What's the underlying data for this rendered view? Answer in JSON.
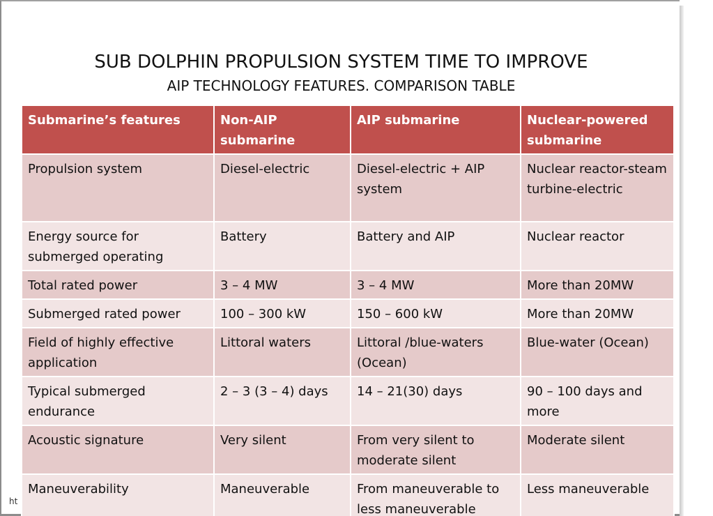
{
  "slide": {
    "title": "SUB DOLPHIN PROPULSION SYSTEM TIME TO IMPROVE",
    "subtitle": "AIP TECHNOLOGY FEATURES. COMPARISON TABLE",
    "footnote": "ht"
  },
  "table": {
    "headers": [
      "Submarine’s features",
      "Non-AIP submarine",
      "AIP submarine",
      "Nuclear-powered submarine"
    ],
    "rows": [
      [
        "Propulsion system",
        "Diesel-electric",
        "Diesel-electric + AIP system",
        "Nuclear reactor-steam turbine-electric"
      ],
      [
        "Energy source for submerged operating",
        "Battery",
        "Battery and AIP",
        "Nuclear reactor"
      ],
      [
        "Total rated power",
        "3 – 4 MW",
        "3 – 4 MW",
        "More than 20MW"
      ],
      [
        "Submerged rated power",
        "100 – 300 kW",
        "150 – 600 kW",
        "More than 20MW"
      ],
      [
        "Field of highly effective application",
        "Littoral waters",
        "Littoral /blue-waters (Ocean)",
        "Blue-water (Ocean)"
      ],
      [
        "Typical submerged endurance",
        "2 – 3 (3 – 4) days",
        "14 – 21(30) days",
        "90 – 100 days and more"
      ],
      [
        "Acoustic signature",
        "Very silent",
        "From very silent to moderate silent",
        "Moderate silent"
      ],
      [
        "Maneuverability",
        "Maneuverable",
        "From maneuverable to  less maneuverable",
        "Less maneuverable"
      ]
    ]
  },
  "colors": {
    "header_bg": "#c0504d",
    "row_odd": "#e5caca",
    "row_even": "#f2e4e4"
  }
}
